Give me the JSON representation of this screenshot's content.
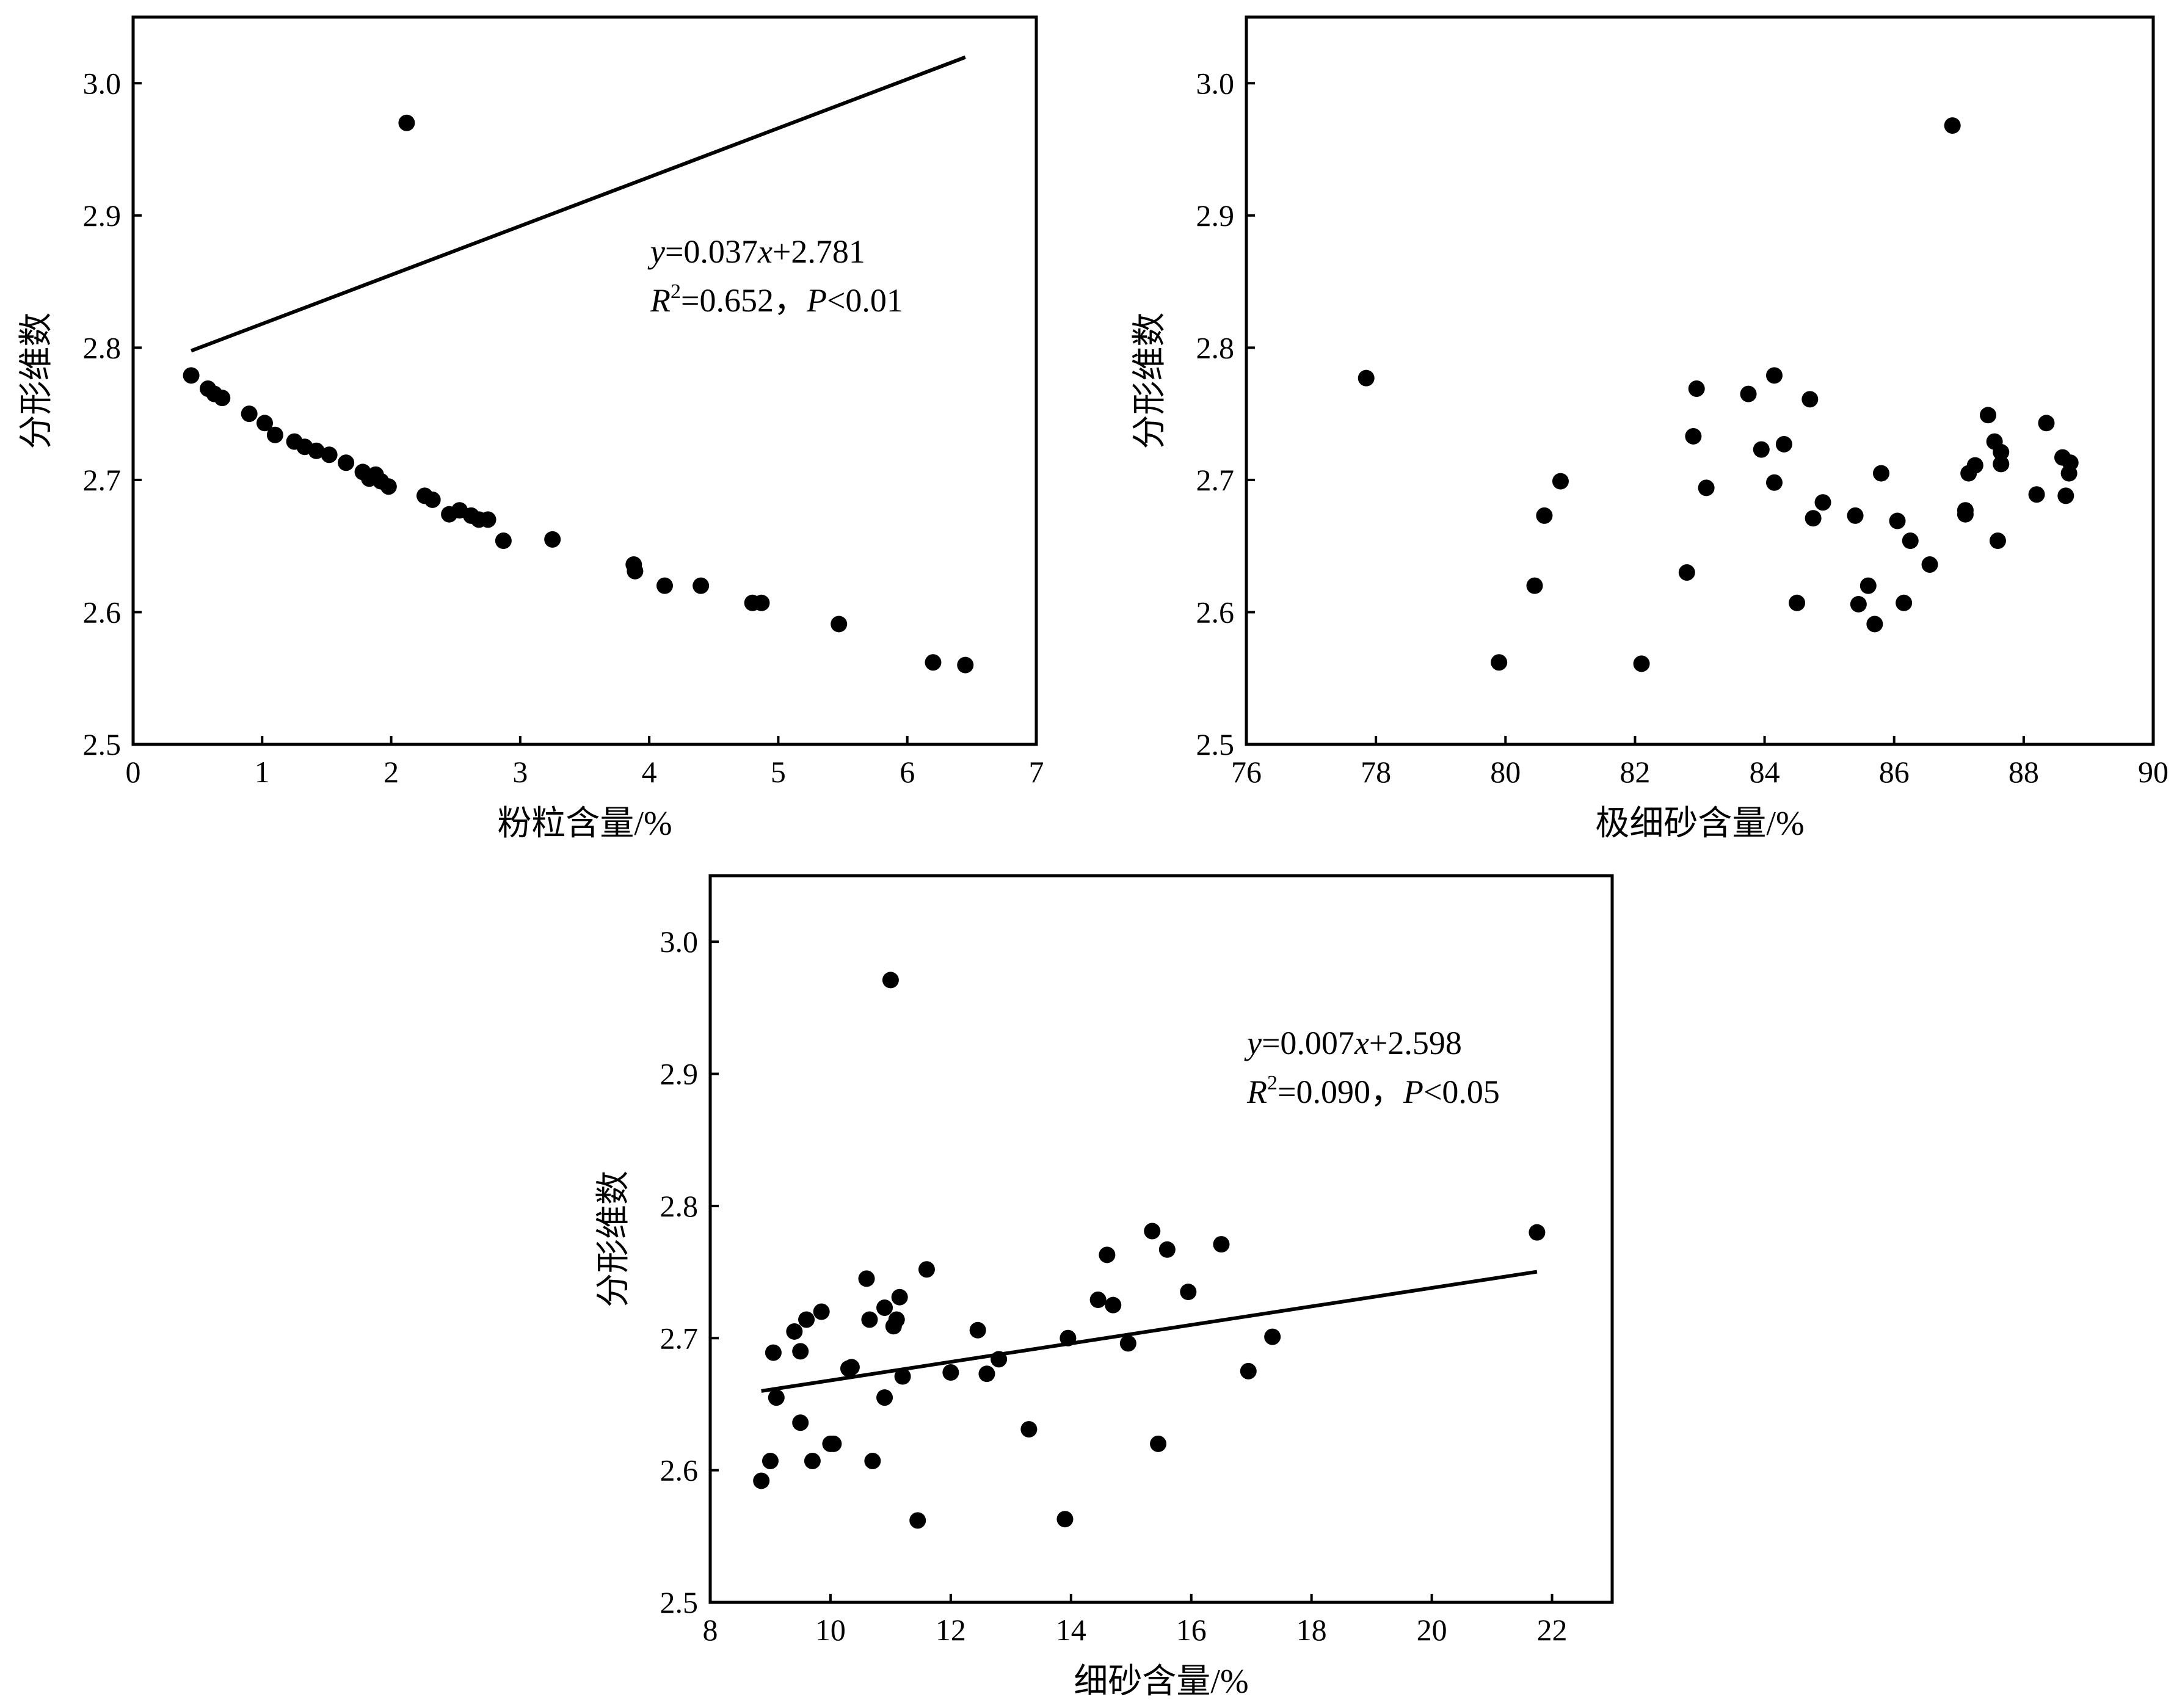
{
  "chart_data": [
    {
      "type": "scatter",
      "xlabel": "粉粒含量/%",
      "ylabel": "分形维数",
      "xlim": [
        0,
        7
      ],
      "ylim": [
        2.5,
        3.05
      ],
      "x_ticks": [
        "0",
        "1",
        "2",
        "3",
        "4",
        "5",
        "6",
        "7"
      ],
      "y_ticks": [
        "2.5",
        "2.6",
        "2.7",
        "2.8",
        "2.9",
        "3.0"
      ],
      "equation": {
        "line1": {
          "v1": "y",
          "t1": "=0.037",
          "v2": "x",
          "t2": "+2.781"
        },
        "line2": {
          "v1": "R",
          "sup": "2",
          "t1": "=0.652，",
          "v2": "P",
          "t2": "<0.01"
        }
      },
      "fit": {
        "slope": 0.037,
        "intercept": 2.781,
        "x_range": [
          0.45,
          6.45
        ]
      },
      "points": [
        [
          0.45,
          2.779
        ],
        [
          0.58,
          2.769
        ],
        [
          0.63,
          2.765
        ],
        [
          0.69,
          2.762
        ],
        [
          0.9,
          2.75
        ],
        [
          1.02,
          2.743
        ],
        [
          1.1,
          2.734
        ],
        [
          1.25,
          2.729
        ],
        [
          1.33,
          2.725
        ],
        [
          1.42,
          2.722
        ],
        [
          1.52,
          2.719
        ],
        [
          1.65,
          2.713
        ],
        [
          1.78,
          2.706
        ],
        [
          1.83,
          2.701
        ],
        [
          1.88,
          2.704
        ],
        [
          1.92,
          2.699
        ],
        [
          1.98,
          2.695
        ],
        [
          2.12,
          2.97
        ],
        [
          2.26,
          2.688
        ],
        [
          2.32,
          2.685
        ],
        [
          2.45,
          2.674
        ],
        [
          2.53,
          2.677
        ],
        [
          2.62,
          2.673
        ],
        [
          2.68,
          2.67
        ],
        [
          2.75,
          2.67
        ],
        [
          2.87,
          2.654
        ],
        [
          3.25,
          2.655
        ],
        [
          3.88,
          2.636
        ],
        [
          3.89,
          2.631
        ],
        [
          4.12,
          2.62
        ],
        [
          4.4,
          2.62
        ],
        [
          4.8,
          2.607
        ],
        [
          4.87,
          2.607
        ],
        [
          5.47,
          2.591
        ],
        [
          6.2,
          2.562
        ],
        [
          6.45,
          2.56
        ]
      ]
    },
    {
      "type": "scatter",
      "xlabel": "极细砂含量/%",
      "ylabel": "分形维数",
      "xlim": [
        76,
        90
      ],
      "ylim": [
        2.5,
        3.05
      ],
      "x_ticks": [
        "76",
        "78",
        "80",
        "82",
        "84",
        "86",
        "88",
        "90"
      ],
      "y_ticks": [
        "2.5",
        "2.6",
        "2.7",
        "2.8",
        "2.9",
        "3.0"
      ],
      "points": [
        [
          77.85,
          2.777
        ],
        [
          79.9,
          2.562
        ],
        [
          80.45,
          2.62
        ],
        [
          80.6,
          2.673
        ],
        [
          80.85,
          2.699
        ],
        [
          82.1,
          2.561
        ],
        [
          82.8,
          2.63
        ],
        [
          82.9,
          2.733
        ],
        [
          82.95,
          2.769
        ],
        [
          83.1,
          2.694
        ],
        [
          83.75,
          2.765
        ],
        [
          83.95,
          2.723
        ],
        [
          84.15,
          2.779
        ],
        [
          84.15,
          2.698
        ],
        [
          84.3,
          2.727
        ],
        [
          84.5,
          2.607
        ],
        [
          84.7,
          2.761
        ],
        [
          84.75,
          2.671
        ],
        [
          84.9,
          2.683
        ],
        [
          85.4,
          2.673
        ],
        [
          85.45,
          2.606
        ],
        [
          85.6,
          2.62
        ],
        [
          85.7,
          2.591
        ],
        [
          85.8,
          2.705
        ],
        [
          86.05,
          2.669
        ],
        [
          86.15,
          2.607
        ],
        [
          86.25,
          2.654
        ],
        [
          86.55,
          2.636
        ],
        [
          86.9,
          2.968
        ],
        [
          87.1,
          2.677
        ],
        [
          87.1,
          2.674
        ],
        [
          87.15,
          2.705
        ],
        [
          87.25,
          2.711
        ],
        [
          87.45,
          2.749
        ],
        [
          87.55,
          2.729
        ],
        [
          87.6,
          2.654
        ],
        [
          87.65,
          2.721
        ],
        [
          87.65,
          2.712
        ],
        [
          88.2,
          2.689
        ],
        [
          88.35,
          2.743
        ],
        [
          88.6,
          2.717
        ],
        [
          88.65,
          2.688
        ],
        [
          88.7,
          2.705
        ],
        [
          88.72,
          2.713
        ]
      ]
    },
    {
      "type": "scatter",
      "xlabel": "细砂含量/%",
      "ylabel": "分形维数",
      "xlim": [
        8,
        23
      ],
      "ylim": [
        2.5,
        3.05
      ],
      "x_ticks": [
        "8",
        "10",
        "12",
        "14",
        "16",
        "18",
        "20",
        "22"
      ],
      "y_ticks": [
        "2.5",
        "2.6",
        "2.7",
        "2.8",
        "2.9",
        "3.0"
      ],
      "equation": {
        "line1": {
          "v1": "y",
          "t1": "=0.007",
          "v2": "x",
          "t2": "+2.598"
        },
        "line2": {
          "v1": "R",
          "sup": "2",
          "t1": "=0.090，",
          "v2": "P",
          "t2": "<0.05"
        }
      },
      "fit": {
        "slope": 0.007,
        "intercept": 2.598,
        "x_range": [
          8.85,
          21.75
        ]
      },
      "points": [
        [
          8.85,
          2.592
        ],
        [
          9.0,
          2.607
        ],
        [
          9.05,
          2.689
        ],
        [
          9.1,
          2.655
        ],
        [
          9.4,
          2.705
        ],
        [
          9.5,
          2.69
        ],
        [
          9.5,
          2.636
        ],
        [
          9.6,
          2.714
        ],
        [
          9.7,
          2.607
        ],
        [
          9.85,
          2.72
        ],
        [
          10.0,
          2.62
        ],
        [
          10.05,
          2.62
        ],
        [
          10.3,
          2.677
        ],
        [
          10.35,
          2.678
        ],
        [
          10.6,
          2.745
        ],
        [
          10.65,
          2.714
        ],
        [
          10.7,
          2.607
        ],
        [
          10.9,
          2.655
        ],
        [
          10.9,
          2.723
        ],
        [
          11.0,
          2.971
        ],
        [
          11.05,
          2.709
        ],
        [
          11.1,
          2.714
        ],
        [
          11.15,
          2.731
        ],
        [
          11.2,
          2.671
        ],
        [
          11.45,
          2.562
        ],
        [
          11.6,
          2.752
        ],
        [
          12.0,
          2.674
        ],
        [
          12.45,
          2.706
        ],
        [
          12.6,
          2.673
        ],
        [
          12.8,
          2.684
        ],
        [
          13.3,
          2.631
        ],
        [
          13.9,
          2.563
        ],
        [
          13.95,
          2.7
        ],
        [
          14.45,
          2.729
        ],
        [
          14.6,
          2.763
        ],
        [
          14.7,
          2.725
        ],
        [
          14.95,
          2.696
        ],
        [
          15.35,
          2.781
        ],
        [
          15.45,
          2.62
        ],
        [
          15.6,
          2.767
        ],
        [
          15.95,
          2.735
        ],
        [
          16.5,
          2.771
        ],
        [
          16.95,
          2.675
        ],
        [
          17.35,
          2.701
        ],
        [
          21.75,
          2.78
        ]
      ]
    }
  ]
}
